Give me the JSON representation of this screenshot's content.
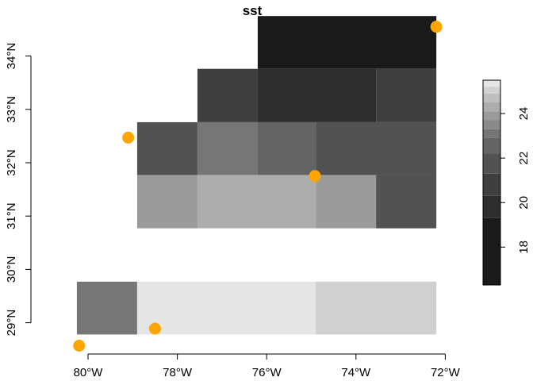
{
  "chart_data": {
    "type": "heatmap",
    "title": "sst",
    "xlabel": "",
    "ylabel": "",
    "x_ticks": [
      {
        "value": -80,
        "label": "80°W"
      },
      {
        "value": -78,
        "label": "78°W"
      },
      {
        "value": -76,
        "label": "76°W"
      },
      {
        "value": -74,
        "label": "74°W"
      },
      {
        "value": -72,
        "label": "72°W"
      }
    ],
    "y_ticks": [
      {
        "value": 29,
        "label": "29°N"
      },
      {
        "value": 30,
        "label": "30°N"
      },
      {
        "value": 31,
        "label": "31°N"
      },
      {
        "value": 32,
        "label": "32°N"
      },
      {
        "value": 33,
        "label": "33°N"
      },
      {
        "value": 34,
        "label": "34°N"
      }
    ],
    "xlim": [
      -80.45,
      -72.0
    ],
    "ylim": [
      28.45,
      34.55
    ],
    "grid": false,
    "cells": [
      {
        "lon0": -76.2,
        "lon1": -72.2,
        "lat0": 33.76,
        "lat1": 34.75,
        "value": 17.5
      },
      {
        "lon0": -77.55,
        "lon1": -76.2,
        "lat0": 32.76,
        "lat1": 33.76,
        "value": 20.8
      },
      {
        "lon0": -76.2,
        "lon1": -73.55,
        "lat0": 32.76,
        "lat1": 33.76,
        "value": 19.8
      },
      {
        "lon0": -73.55,
        "lon1": -72.2,
        "lat0": 32.76,
        "lat1": 33.76,
        "value": 20.9
      },
      {
        "lon0": -78.9,
        "lon1": -77.55,
        "lat0": 31.77,
        "lat1": 32.76,
        "value": 22.0
      },
      {
        "lon0": -77.55,
        "lon1": -76.2,
        "lat0": 31.77,
        "lat1": 32.76,
        "value": 23.2
      },
      {
        "lon0": -76.2,
        "lon1": -74.9,
        "lat0": 31.77,
        "lat1": 32.76,
        "value": 22.4
      },
      {
        "lon0": -74.9,
        "lon1": -72.2,
        "lat0": 31.77,
        "lat1": 32.76,
        "value": 21.6
      },
      {
        "lon0": -78.9,
        "lon1": -77.55,
        "lat0": 30.77,
        "lat1": 31.77,
        "value": 23.9
      },
      {
        "lon0": -77.55,
        "lon1": -74.9,
        "lat0": 30.77,
        "lat1": 31.77,
        "value": 24.4
      },
      {
        "lon0": -74.9,
        "lon1": -73.55,
        "lat0": 30.77,
        "lat1": 31.77,
        "value": 23.8
      },
      {
        "lon0": -73.55,
        "lon1": -72.2,
        "lat0": 30.77,
        "lat1": 31.77,
        "value": 22.1
      },
      {
        "lon0": -80.25,
        "lon1": -78.9,
        "lat0": 28.78,
        "lat1": 29.77,
        "value": 23.0
      },
      {
        "lon0": -78.9,
        "lon1": -74.9,
        "lat0": 28.78,
        "lat1": 29.77,
        "value": 25.4
      },
      {
        "lon0": -74.9,
        "lon1": -72.2,
        "lat0": 28.78,
        "lat1": 29.77,
        "value": 24.9
      },
      {
        "lon0": -80.25,
        "lon1": -78.9,
        "lat0": 29.77,
        "lat1": 29.77,
        "value": 23.0
      }
    ],
    "points": [
      {
        "lon": -72.2,
        "lat": 34.55
      },
      {
        "lon": -79.1,
        "lat": 32.47
      },
      {
        "lon": -74.92,
        "lat": 31.75
      },
      {
        "lon": -78.5,
        "lat": 28.89
      },
      {
        "lon": -80.2,
        "lat": 28.57
      }
    ],
    "point_color": "#FFA500",
    "legend": {
      "placement": "right",
      "ticks": [
        18,
        20,
        22,
        24
      ],
      "range": [
        16.3,
        25.5
      ],
      "bands": [
        {
          "from": 16.3,
          "to": 19.3,
          "color": "#1a1a1a"
        },
        {
          "from": 19.3,
          "to": 20.3,
          "color": "#2e2e2e"
        },
        {
          "from": 20.3,
          "to": 21.3,
          "color": "#3f3f3f"
        },
        {
          "from": 21.3,
          "to": 22.2,
          "color": "#525252"
        },
        {
          "from": 22.2,
          "to": 22.9,
          "color": "#646464"
        },
        {
          "from": 22.9,
          "to": 23.3,
          "color": "#767676"
        },
        {
          "from": 23.3,
          "to": 23.7,
          "color": "#8a8a8a"
        },
        {
          "from": 23.7,
          "to": 24.1,
          "color": "#9b9b9b"
        },
        {
          "from": 24.1,
          "to": 24.5,
          "color": "#adadad"
        },
        {
          "from": 24.5,
          "to": 24.9,
          "color": "#bebebe"
        },
        {
          "from": 24.9,
          "to": 25.2,
          "color": "#d0d0d0"
        },
        {
          "from": 25.2,
          "to": 25.5,
          "color": "#e5e5e5"
        }
      ]
    }
  }
}
